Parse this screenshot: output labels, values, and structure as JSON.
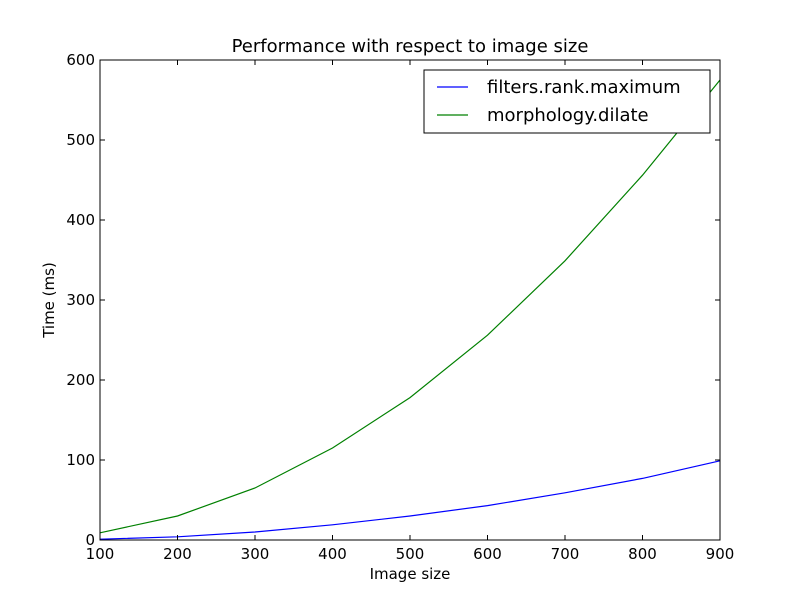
{
  "chart_data": {
    "type": "line",
    "title": "Performance with respect to image size",
    "xlabel": "Image size",
    "ylabel": "Time (ms)",
    "xlim": [
      100,
      900
    ],
    "ylim": [
      0,
      600
    ],
    "xticks": [
      100,
      200,
      300,
      400,
      500,
      600,
      700,
      800,
      900
    ],
    "yticks": [
      0,
      100,
      200,
      300,
      400,
      500,
      600
    ],
    "grid": false,
    "legend_position": "top-right",
    "x": [
      100,
      200,
      300,
      400,
      500,
      600,
      700,
      800,
      900
    ],
    "series": [
      {
        "name": "filters.rank.maximum",
        "color": "#0000ff",
        "values": [
          1,
          4,
          10,
          19,
          30,
          43,
          59,
          77,
          99
        ]
      },
      {
        "name": "morphology.dilate",
        "color": "#008000",
        "values": [
          9,
          30,
          65,
          115,
          178,
          256,
          349,
          456,
          575
        ]
      }
    ]
  }
}
